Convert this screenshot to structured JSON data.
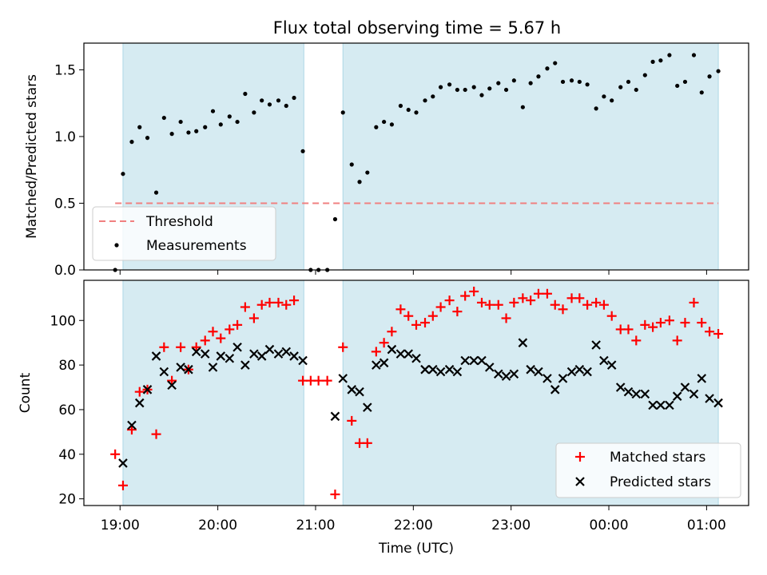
{
  "title": "Flux total observing time = 5.67 h",
  "colors": {
    "shade": "#add8e6",
    "threshold": "#f08080",
    "measurement": "#000000",
    "matched": "#ff0000",
    "predicted": "#000000"
  },
  "chart_data": [
    {
      "type": "scatter",
      "ylabel": "Matched/Predicted stars",
      "ylim": [
        0,
        1.7
      ],
      "yticks": [
        "0.0",
        "0.5",
        "1.0",
        "1.5"
      ],
      "xlim": [
        18.63,
        25.43
      ],
      "xticks": [
        19,
        20,
        21,
        22,
        23,
        24,
        25
      ],
      "shaded_intervals": [
        [
          19.03,
          20.88
        ],
        [
          21.28,
          25.12
        ]
      ],
      "threshold": 0.5,
      "legend": {
        "position": "lower-left",
        "entries": [
          "Threshold",
          "Measurements"
        ]
      },
      "series": [
        {
          "name": "Measurements",
          "points": [
            [
              18.95,
              0.0
            ],
            [
              19.03,
              0.72
            ],
            [
              19.12,
              0.96
            ],
            [
              19.2,
              1.07
            ],
            [
              19.28,
              0.99
            ],
            [
              19.37,
              0.58
            ],
            [
              19.45,
              1.14
            ],
            [
              19.53,
              1.02
            ],
            [
              19.62,
              1.11
            ],
            [
              19.7,
              1.03
            ],
            [
              19.78,
              1.04
            ],
            [
              19.87,
              1.07
            ],
            [
              19.95,
              1.19
            ],
            [
              20.03,
              1.09
            ],
            [
              20.12,
              1.15
            ],
            [
              20.2,
              1.11
            ],
            [
              20.28,
              1.32
            ],
            [
              20.37,
              1.18
            ],
            [
              20.45,
              1.27
            ],
            [
              20.53,
              1.24
            ],
            [
              20.62,
              1.27
            ],
            [
              20.7,
              1.23
            ],
            [
              20.78,
              1.29
            ],
            [
              20.87,
              0.89
            ],
            [
              20.95,
              0.0
            ],
            [
              21.03,
              0.0
            ],
            [
              21.12,
              0.0
            ],
            [
              21.2,
              0.38
            ],
            [
              21.28,
              1.18
            ],
            [
              21.37,
              0.79
            ],
            [
              21.45,
              0.66
            ],
            [
              21.53,
              0.73
            ],
            [
              21.62,
              1.07
            ],
            [
              21.7,
              1.11
            ],
            [
              21.78,
              1.09
            ],
            [
              21.87,
              1.23
            ],
            [
              21.95,
              1.2
            ],
            [
              22.03,
              1.18
            ],
            [
              22.12,
              1.27
            ],
            [
              22.2,
              1.3
            ],
            [
              22.28,
              1.37
            ],
            [
              22.37,
              1.39
            ],
            [
              22.45,
              1.35
            ],
            [
              22.53,
              1.35
            ],
            [
              22.62,
              1.37
            ],
            [
              22.7,
              1.31
            ],
            [
              22.78,
              1.36
            ],
            [
              22.87,
              1.4
            ],
            [
              22.95,
              1.35
            ],
            [
              23.03,
              1.42
            ],
            [
              23.12,
              1.22
            ],
            [
              23.2,
              1.4
            ],
            [
              23.28,
              1.45
            ],
            [
              23.37,
              1.51
            ],
            [
              23.45,
              1.55
            ],
            [
              23.53,
              1.41
            ],
            [
              23.62,
              1.42
            ],
            [
              23.7,
              1.41
            ],
            [
              23.78,
              1.39
            ],
            [
              23.87,
              1.21
            ],
            [
              23.95,
              1.3
            ],
            [
              24.03,
              1.27
            ],
            [
              24.12,
              1.37
            ],
            [
              24.2,
              1.41
            ],
            [
              24.28,
              1.35
            ],
            [
              24.37,
              1.46
            ],
            [
              24.45,
              1.56
            ],
            [
              24.53,
              1.57
            ],
            [
              24.62,
              1.61
            ],
            [
              24.7,
              1.38
            ],
            [
              24.78,
              1.41
            ],
            [
              24.87,
              1.61
            ],
            [
              24.95,
              1.33
            ],
            [
              25.03,
              1.45
            ],
            [
              25.12,
              1.49
            ]
          ]
        }
      ]
    },
    {
      "type": "scatter",
      "ylabel": "Count",
      "xlabel": "Time (UTC)",
      "ylim": [
        17,
        118
      ],
      "yticks": [
        "20",
        "40",
        "60",
        "80",
        "100"
      ],
      "xlim": [
        18.63,
        25.43
      ],
      "xticks": [
        19,
        20,
        21,
        22,
        23,
        24,
        25
      ],
      "xticklabels": [
        "19:00",
        "20:00",
        "21:00",
        "22:00",
        "23:00",
        "00:00",
        "01:00"
      ],
      "shaded_intervals": [
        [
          19.03,
          20.88
        ],
        [
          21.28,
          25.12
        ]
      ],
      "legend": {
        "position": "lower-right",
        "entries": [
          "Matched stars",
          "Predicted stars"
        ]
      },
      "series": [
        {
          "name": "Matched stars",
          "points": [
            [
              18.95,
              40
            ],
            [
              19.03,
              26
            ],
            [
              19.12,
              51
            ],
            [
              19.2,
              68
            ],
            [
              19.28,
              69
            ],
            [
              19.37,
              49
            ],
            [
              19.45,
              88
            ],
            [
              19.53,
              73
            ],
            [
              19.62,
              88
            ],
            [
              19.7,
              78
            ],
            [
              19.78,
              88
            ],
            [
              19.87,
              91
            ],
            [
              19.95,
              95
            ],
            [
              20.03,
              92
            ],
            [
              20.12,
              96
            ],
            [
              20.2,
              98
            ],
            [
              20.28,
              106
            ],
            [
              20.37,
              101
            ],
            [
              20.45,
              107
            ],
            [
              20.53,
              108
            ],
            [
              20.62,
              108
            ],
            [
              20.7,
              107
            ],
            [
              20.78,
              109
            ],
            [
              20.87,
              73
            ],
            [
              20.95,
              73
            ],
            [
              21.03,
              73
            ],
            [
              21.12,
              73
            ],
            [
              21.2,
              22
            ],
            [
              21.28,
              88
            ],
            [
              21.37,
              55
            ],
            [
              21.45,
              45
            ],
            [
              21.53,
              45
            ],
            [
              21.62,
              86
            ],
            [
              21.7,
              90
            ],
            [
              21.78,
              95
            ],
            [
              21.87,
              105
            ],
            [
              21.95,
              102
            ],
            [
              22.03,
              98
            ],
            [
              22.12,
              99
            ],
            [
              22.2,
              102
            ],
            [
              22.28,
              106
            ],
            [
              22.37,
              109
            ],
            [
              22.45,
              104
            ],
            [
              22.53,
              111
            ],
            [
              22.62,
              113
            ],
            [
              22.7,
              108
            ],
            [
              22.78,
              107
            ],
            [
              22.87,
              107
            ],
            [
              22.95,
              101
            ],
            [
              23.03,
              108
            ],
            [
              23.12,
              110
            ],
            [
              23.2,
              109
            ],
            [
              23.28,
              112
            ],
            [
              23.37,
              112
            ],
            [
              23.45,
              107
            ],
            [
              23.53,
              105
            ],
            [
              23.62,
              110
            ],
            [
              23.7,
              110
            ],
            [
              23.78,
              107
            ],
            [
              23.87,
              108
            ],
            [
              23.95,
              107
            ],
            [
              24.03,
              102
            ],
            [
              24.12,
              96
            ],
            [
              24.2,
              96
            ],
            [
              24.28,
              91
            ],
            [
              24.37,
              98
            ],
            [
              24.45,
              97
            ],
            [
              24.53,
              99
            ],
            [
              24.62,
              100
            ],
            [
              24.7,
              91
            ],
            [
              24.78,
              99
            ],
            [
              24.87,
              108
            ],
            [
              24.95,
              99
            ],
            [
              25.03,
              95
            ],
            [
              25.12,
              94
            ]
          ]
        },
        {
          "name": "Predicted stars",
          "points": [
            [
              19.03,
              36
            ],
            [
              19.12,
              53
            ],
            [
              19.2,
              63
            ],
            [
              19.28,
              69
            ],
            [
              19.37,
              84
            ],
            [
              19.45,
              77
            ],
            [
              19.53,
              71
            ],
            [
              19.62,
              79
            ],
            [
              19.7,
              78
            ],
            [
              19.78,
              86
            ],
            [
              19.87,
              85
            ],
            [
              19.95,
              79
            ],
            [
              20.03,
              84
            ],
            [
              20.12,
              83
            ],
            [
              20.2,
              88
            ],
            [
              20.28,
              80
            ],
            [
              20.37,
              85
            ],
            [
              20.45,
              84
            ],
            [
              20.53,
              87
            ],
            [
              20.62,
              85
            ],
            [
              20.7,
              86
            ],
            [
              20.78,
              84
            ],
            [
              20.87,
              82
            ],
            [
              21.2,
              57
            ],
            [
              21.28,
              74
            ],
            [
              21.37,
              69
            ],
            [
              21.45,
              68
            ],
            [
              21.53,
              61
            ],
            [
              21.62,
              80
            ],
            [
              21.7,
              81
            ],
            [
              21.78,
              87
            ],
            [
              21.87,
              85
            ],
            [
              21.95,
              85
            ],
            [
              22.03,
              83
            ],
            [
              22.12,
              78
            ],
            [
              22.2,
              78
            ],
            [
              22.28,
              77
            ],
            [
              22.37,
              78
            ],
            [
              22.45,
              77
            ],
            [
              22.53,
              82
            ],
            [
              22.62,
              82
            ],
            [
              22.7,
              82
            ],
            [
              22.78,
              79
            ],
            [
              22.87,
              76
            ],
            [
              22.95,
              75
            ],
            [
              23.03,
              76
            ],
            [
              23.12,
              90
            ],
            [
              23.2,
              78
            ],
            [
              23.28,
              77
            ],
            [
              23.37,
              74
            ],
            [
              23.45,
              69
            ],
            [
              23.53,
              74
            ],
            [
              23.62,
              77
            ],
            [
              23.7,
              78
            ],
            [
              23.78,
              77
            ],
            [
              23.87,
              89
            ],
            [
              23.95,
              82
            ],
            [
              24.03,
              80
            ],
            [
              24.12,
              70
            ],
            [
              24.2,
              68
            ],
            [
              24.28,
              67
            ],
            [
              24.37,
              67
            ],
            [
              24.45,
              62
            ],
            [
              24.53,
              62
            ],
            [
              24.62,
              62
            ],
            [
              24.7,
              66
            ],
            [
              24.78,
              70
            ],
            [
              24.87,
              67
            ],
            [
              24.95,
              74
            ],
            [
              25.03,
              65
            ],
            [
              25.12,
              63
            ]
          ]
        }
      ]
    }
  ]
}
